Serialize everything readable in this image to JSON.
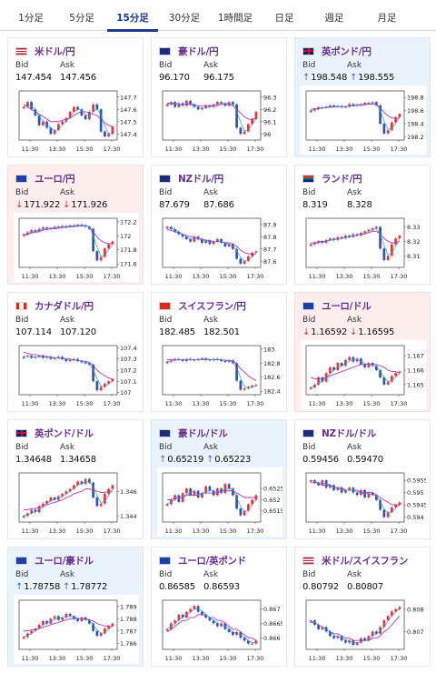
{
  "tabs": [
    "1分足",
    "5分足",
    "15分足",
    "30分足",
    "1時間足",
    "日足",
    "週足",
    "月足"
  ],
  "active_tab": "15分足",
  "labels": {
    "bid": "Bid",
    "ask": "Ask"
  },
  "time_ticks": [
    "11:30",
    "13:30",
    "15:30",
    "17:30"
  ],
  "colors": {
    "up_candle": "#e03a3a",
    "down_candle": "#2b56b8",
    "ma_short": "#28a0c8",
    "ma_long": "#c030c0",
    "pair_text": "#6b2f91"
  },
  "cards": [
    {
      "name": "usdjpy",
      "pair": "米ドル/円",
      "flag": "us-flag",
      "bid": "147.454",
      "ask": "147.456",
      "arrow": "",
      "state": "none",
      "ticks": [
        "147.7",
        "147.6",
        "147.5",
        "147.4"
      ],
      "ymin": 147.35,
      "ymax": 147.75,
      "closes": [
        147.62,
        147.66,
        147.6,
        147.55,
        147.47,
        147.5,
        147.45,
        147.4,
        147.43,
        147.48,
        147.5,
        147.53,
        147.58,
        147.62,
        147.6,
        147.55,
        147.52,
        147.58,
        147.64,
        147.6,
        147.42,
        147.38,
        147.4,
        147.46
      ],
      "ma": [
        147.64,
        147.62,
        147.6,
        147.58,
        147.56,
        147.54,
        147.52,
        147.5,
        147.5,
        147.5,
        147.51,
        147.52,
        147.53,
        147.55,
        147.57,
        147.58,
        147.58,
        147.57,
        147.56,
        147.55,
        147.52,
        147.49,
        147.47,
        147.46
      ]
    },
    {
      "name": "audjpy",
      "pair": "豪ドル/円",
      "flag": "au-flag",
      "bid": "96.170",
      "ask": "96.175",
      "arrow": "",
      "state": "none",
      "ticks": [
        "96.3",
        "96.2",
        "96.1",
        "96"
      ],
      "ymin": 95.95,
      "ymax": 96.35,
      "closes": [
        96.24,
        96.26,
        96.22,
        96.25,
        96.23,
        96.27,
        96.24,
        96.22,
        96.2,
        96.21,
        96.23,
        96.22,
        96.24,
        96.26,
        96.25,
        96.23,
        96.26,
        96.24,
        96.05,
        96.0,
        96.02,
        96.08,
        96.12,
        96.18
      ],
      "ma": [
        96.25,
        96.25,
        96.25,
        96.24,
        96.24,
        96.24,
        96.24,
        96.23,
        96.23,
        96.23,
        96.23,
        96.23,
        96.23,
        96.23,
        96.24,
        96.24,
        96.24,
        96.23,
        96.2,
        96.17,
        96.14,
        96.12,
        96.12,
        96.13
      ]
    },
    {
      "name": "gbpjpy",
      "pair": "英ポンド/円",
      "flag": "uk-flag",
      "bid": "198.548",
      "ask": "198.555",
      "arrow": "up",
      "state": "up",
      "ticks": [
        "198.8",
        "198.6",
        "198.4",
        "198.2"
      ],
      "ymin": 198.15,
      "ymax": 198.9,
      "closes": [
        198.6,
        198.62,
        198.65,
        198.64,
        198.66,
        198.68,
        198.66,
        198.67,
        198.65,
        198.66,
        198.7,
        198.68,
        198.69,
        198.7,
        198.72,
        198.71,
        198.73,
        198.68,
        198.4,
        198.25,
        198.3,
        198.42,
        198.5,
        198.55
      ],
      "ma": [
        198.62,
        198.63,
        198.63,
        198.64,
        198.65,
        198.65,
        198.66,
        198.66,
        198.66,
        198.66,
        198.67,
        198.67,
        198.68,
        198.68,
        198.69,
        198.7,
        198.7,
        198.69,
        198.64,
        198.57,
        198.52,
        198.49,
        198.48,
        198.49
      ]
    },
    {
      "name": "eurjpy",
      "pair": "ユーロ/円",
      "flag": "eu-flag",
      "bid": "171.922",
      "ask": "171.926",
      "arrow": "dn",
      "state": "down",
      "ticks": [
        "172.2",
        "172",
        "171.8",
        "171.6"
      ],
      "ymin": 171.55,
      "ymax": 172.25,
      "closes": [
        172.02,
        172.05,
        172.08,
        172.06,
        172.1,
        172.12,
        172.1,
        172.11,
        172.13,
        172.12,
        172.14,
        172.13,
        172.15,
        172.14,
        172.16,
        172.15,
        172.13,
        172.1,
        171.78,
        171.65,
        171.7,
        171.82,
        171.88,
        171.92
      ],
      "ma": [
        172.0,
        172.02,
        172.04,
        172.05,
        172.06,
        172.08,
        172.09,
        172.1,
        172.1,
        172.11,
        172.12,
        172.12,
        172.13,
        172.13,
        172.14,
        172.14,
        172.14,
        172.13,
        172.06,
        171.98,
        171.93,
        171.9,
        171.89,
        171.89
      ]
    },
    {
      "name": "nzdjpy",
      "pair": "NZドル/円",
      "flag": "nz-flag",
      "bid": "87.679",
      "ask": "87.686",
      "arrow": "",
      "state": "none",
      "ticks": [
        "87.9",
        "87.8",
        "87.7",
        "87.6"
      ],
      "ymin": 87.55,
      "ymax": 87.95,
      "closes": [
        87.88,
        87.86,
        87.84,
        87.82,
        87.8,
        87.78,
        87.76,
        87.8,
        87.78,
        87.75,
        87.77,
        87.74,
        87.76,
        87.78,
        87.75,
        87.72,
        87.74,
        87.7,
        87.62,
        87.58,
        87.6,
        87.64,
        87.67,
        87.68
      ],
      "ma": [
        87.86,
        87.85,
        87.84,
        87.83,
        87.82,
        87.81,
        87.8,
        87.79,
        87.79,
        87.78,
        87.77,
        87.77,
        87.76,
        87.76,
        87.76,
        87.75,
        87.75,
        87.74,
        87.72,
        87.69,
        87.67,
        87.66,
        87.66,
        87.66
      ]
    },
    {
      "name": "zarjpy",
      "pair": "ランド/円",
      "flag": "za-flag",
      "bid": "8.319",
      "ask": "8.328",
      "arrow": "",
      "state": "none",
      "ticks": [
        "8.33",
        "8.32",
        "8.31"
      ],
      "ymin": 8.302,
      "ymax": 8.336,
      "closes": [
        8.318,
        8.319,
        8.32,
        8.319,
        8.321,
        8.322,
        8.321,
        8.323,
        8.322,
        8.324,
        8.323,
        8.325,
        8.324,
        8.326,
        8.327,
        8.328,
        8.329,
        8.33,
        8.315,
        8.307,
        8.31,
        8.318,
        8.322,
        8.324
      ],
      "ma": [
        8.319,
        8.319,
        8.32,
        8.32,
        8.32,
        8.321,
        8.321,
        8.322,
        8.322,
        8.323,
        8.323,
        8.324,
        8.324,
        8.325,
        8.325,
        8.326,
        8.327,
        8.327,
        8.325,
        8.322,
        8.32,
        8.319,
        8.319,
        8.32
      ]
    },
    {
      "name": "cadjpy",
      "pair": "カナダドル/円",
      "flag": "ca-flag",
      "bid": "107.114",
      "ask": "107.120",
      "arrow": "",
      "state": "none",
      "ticks": [
        "107.4",
        "107.3",
        "107.2",
        "107.1",
        "107"
      ],
      "ymin": 106.98,
      "ymax": 107.42,
      "closes": [
        107.32,
        107.33,
        107.31,
        107.32,
        107.33,
        107.31,
        107.32,
        107.3,
        107.31,
        107.32,
        107.3,
        107.28,
        107.29,
        107.3,
        107.28,
        107.27,
        107.26,
        107.25,
        107.1,
        107.02,
        107.05,
        107.08,
        107.1,
        107.12
      ],
      "ma": [
        107.36,
        107.35,
        107.34,
        107.34,
        107.33,
        107.33,
        107.32,
        107.32,
        107.31,
        107.31,
        107.3,
        107.3,
        107.3,
        107.29,
        107.29,
        107.28,
        107.28,
        107.27,
        107.24,
        107.2,
        107.17,
        107.15,
        107.13,
        107.12
      ]
    },
    {
      "name": "chfjpy",
      "pair": "スイスフラン/円",
      "flag": "ch-flag",
      "bid": "182.485",
      "ask": "182.501",
      "arrow": "",
      "state": "none",
      "ticks": [
        "183",
        "182.8",
        "182.6",
        "182.4"
      ],
      "ymin": 182.35,
      "ymax": 183.05,
      "closes": [
        182.82,
        182.84,
        182.86,
        182.85,
        182.83,
        182.86,
        182.85,
        182.84,
        182.86,
        182.87,
        182.85,
        182.84,
        182.86,
        182.85,
        182.83,
        182.82,
        182.84,
        182.8,
        182.55,
        182.42,
        182.44,
        182.46,
        182.48,
        182.49
      ],
      "ma": [
        182.85,
        182.85,
        182.85,
        182.85,
        182.85,
        182.85,
        182.85,
        182.85,
        182.85,
        182.85,
        182.85,
        182.85,
        182.85,
        182.85,
        182.85,
        182.84,
        182.84,
        182.83,
        182.79,
        182.72,
        182.67,
        182.62,
        182.58,
        182.55
      ]
    },
    {
      "name": "eurusd",
      "pair": "ユーロ/ドル",
      "flag": "eu-us-flag",
      "bid": "1.16592",
      "ask": "1.16595",
      "arrow": "dn",
      "state": "down",
      "ticks": [
        "1.167",
        "1.166",
        "1.165"
      ],
      "ymin": 1.1643,
      "ymax": 1.1677,
      "closes": [
        1.1648,
        1.165,
        1.1655,
        1.1652,
        1.1658,
        1.1662,
        1.166,
        1.1665,
        1.1663,
        1.1667,
        1.1669,
        1.1666,
        1.1668,
        1.1664,
        1.1662,
        1.1665,
        1.1663,
        1.166,
        1.1655,
        1.165,
        1.1652,
        1.1656,
        1.1658,
        1.1659
      ],
      "ma": [
        1.1655,
        1.1654,
        1.1654,
        1.1654,
        1.1655,
        1.1656,
        1.1657,
        1.1658,
        1.1659,
        1.166,
        1.1661,
        1.1662,
        1.1663,
        1.1664,
        1.1664,
        1.1664,
        1.1664,
        1.1664,
        1.1663,
        1.1662,
        1.166,
        1.1659,
        1.1659,
        1.1658
      ]
    },
    {
      "name": "gbpusd",
      "pair": "英ポンド/ドル",
      "flag": "uk-us-flag",
      "bid": "1.34648",
      "ask": "1.34658",
      "arrow": "",
      "state": "none",
      "ticks": [
        "1.346",
        "1.344"
      ],
      "ymin": 1.3435,
      "ymax": 1.3475,
      "closes": [
        1.344,
        1.3442,
        1.3445,
        1.3443,
        1.3448,
        1.345,
        1.3452,
        1.3455,
        1.3453,
        1.3456,
        1.3458,
        1.346,
        1.3462,
        1.3465,
        1.3468,
        1.3466,
        1.347,
        1.3467,
        1.3455,
        1.3448,
        1.345,
        1.3458,
        1.3462,
        1.3465
      ],
      "ma": [
        1.3445,
        1.3445,
        1.3446,
        1.3446,
        1.3447,
        1.3448,
        1.3449,
        1.345,
        1.3451,
        1.3452,
        1.3453,
        1.3455,
        1.3456,
        1.3458,
        1.3459,
        1.346,
        1.3462,
        1.3462,
        1.3461,
        1.346,
        1.3459,
        1.3459,
        1.346,
        1.346
      ]
    },
    {
      "name": "audusd",
      "pair": "豪ドル/ドル",
      "flag": "au-us-flag",
      "bid": "0.65219",
      "ask": "0.65223",
      "arrow": "up",
      "state": "up",
      "ticks": [
        "0.6525",
        "0.652",
        "0.6515"
      ],
      "ymin": 0.651,
      "ymax": 0.6532,
      "closes": [
        0.6518,
        0.652,
        0.6522,
        0.6519,
        0.6523,
        0.6525,
        0.6522,
        0.6524,
        0.6521,
        0.6523,
        0.6526,
        0.6524,
        0.6522,
        0.6525,
        0.6523,
        0.6527,
        0.6525,
        0.6522,
        0.6516,
        0.6513,
        0.6515,
        0.6518,
        0.652,
        0.6522
      ],
      "ma": [
        0.652,
        0.652,
        0.6521,
        0.6521,
        0.6521,
        0.6522,
        0.6522,
        0.6522,
        0.6522,
        0.6523,
        0.6523,
        0.6523,
        0.6523,
        0.6523,
        0.6524,
        0.6524,
        0.6524,
        0.6524,
        0.6523,
        0.6522,
        0.6521,
        0.6521,
        0.6521,
        0.6521
      ]
    },
    {
      "name": "nzdusd",
      "pair": "NZドル/ドル",
      "flag": "nz-us-flag",
      "bid": "0.59456",
      "ask": "0.59470",
      "arrow": "",
      "state": "none",
      "ticks": [
        "0.5955",
        "0.595",
        "0.5945",
        "0.594"
      ],
      "ymin": 0.5938,
      "ymax": 0.5958,
      "closes": [
        0.5955,
        0.5954,
        0.5953,
        0.5955,
        0.5952,
        0.5953,
        0.5951,
        0.5952,
        0.595,
        0.5951,
        0.5952,
        0.595,
        0.5949,
        0.5951,
        0.5948,
        0.595,
        0.5949,
        0.5947,
        0.5943,
        0.594,
        0.5942,
        0.5944,
        0.5945,
        0.5946
      ],
      "ma": [
        0.5954,
        0.5954,
        0.5954,
        0.5953,
        0.5953,
        0.5953,
        0.5952,
        0.5952,
        0.5952,
        0.5951,
        0.5951,
        0.5951,
        0.5951,
        0.595,
        0.595,
        0.595,
        0.595,
        0.5949,
        0.5948,
        0.5947,
        0.5946,
        0.5945,
        0.5945,
        0.5945
      ]
    },
    {
      "name": "euraud",
      "pair": "ユーロ/豪ドル",
      "flag": "eu-au-flag",
      "bid": "1.78758",
      "ask": "1.78772",
      "arrow": "up",
      "state": "up",
      "ticks": [
        "1.789",
        "1.788",
        "1.787",
        "1.786"
      ],
      "ymin": 1.7855,
      "ymax": 1.7895,
      "closes": [
        1.7865,
        1.7868,
        1.787,
        1.7872,
        1.7875,
        1.7878,
        1.7876,
        1.788,
        1.7882,
        1.7879,
        1.7881,
        1.7884,
        1.7882,
        1.788,
        1.7878,
        1.7881,
        1.7879,
        1.7876,
        1.787,
        1.7866,
        1.7868,
        1.7872,
        1.7874,
        1.7876
      ],
      "ma": [
        1.787,
        1.787,
        1.7871,
        1.7871,
        1.7872,
        1.7873,
        1.7874,
        1.7875,
        1.7876,
        1.7877,
        1.7878,
        1.7879,
        1.788,
        1.788,
        1.788,
        1.788,
        1.788,
        1.7879,
        1.7878,
        1.7876,
        1.7875,
        1.7874,
        1.7874,
        1.7874
      ]
    },
    {
      "name": "eurgbp",
      "pair": "ユーロ/英ポンド",
      "flag": "eu-uk-flag",
      "bid": "0.86585",
      "ask": "0.86593",
      "arrow": "",
      "state": "none",
      "ticks": [
        "0.867",
        "0.8665",
        "0.866"
      ],
      "ymin": 0.8656,
      "ymax": 0.8673,
      "closes": [
        0.8663,
        0.8665,
        0.8666,
        0.8668,
        0.8667,
        0.8669,
        0.867,
        0.8671,
        0.8669,
        0.8668,
        0.8667,
        0.8666,
        0.8665,
        0.8664,
        0.8665,
        0.8663,
        0.8662,
        0.8661,
        0.8662,
        0.866,
        0.8659,
        0.8658,
        0.8658,
        0.8659
      ],
      "ma": [
        0.8662,
        0.8663,
        0.8664,
        0.8665,
        0.8666,
        0.8666,
        0.8667,
        0.8667,
        0.8668,
        0.8668,
        0.8668,
        0.8667,
        0.8667,
        0.8666,
        0.8666,
        0.8665,
        0.8664,
        0.8663,
        0.8663,
        0.8662,
        0.8661,
        0.866,
        0.866,
        0.8659
      ]
    },
    {
      "name": "usdchf",
      "pair": "米ドル/スイスフラン",
      "flag": "us-ch-flag",
      "bid": "0.80792",
      "ask": "0.80807",
      "arrow": "",
      "state": "none",
      "ticks": [
        "0.808",
        "0.807"
      ],
      "ymin": 0.8062,
      "ymax": 0.8084,
      "closes": [
        0.8075,
        0.8073,
        0.8071,
        0.8072,
        0.807,
        0.8068,
        0.8067,
        0.8068,
        0.8066,
        0.8065,
        0.8066,
        0.8064,
        0.8065,
        0.8067,
        0.8066,
        0.8068,
        0.807,
        0.8069,
        0.8072,
        0.8075,
        0.8077,
        0.8079,
        0.808,
        0.8081
      ],
      "ma": [
        0.8074,
        0.8074,
        0.8073,
        0.8072,
        0.8071,
        0.807,
        0.8069,
        0.8069,
        0.8068,
        0.8067,
        0.8067,
        0.8066,
        0.8066,
        0.8066,
        0.8066,
        0.8066,
        0.8067,
        0.8067,
        0.8068,
        0.807,
        0.8071,
        0.8073,
        0.8075,
        0.8077
      ]
    }
  ]
}
